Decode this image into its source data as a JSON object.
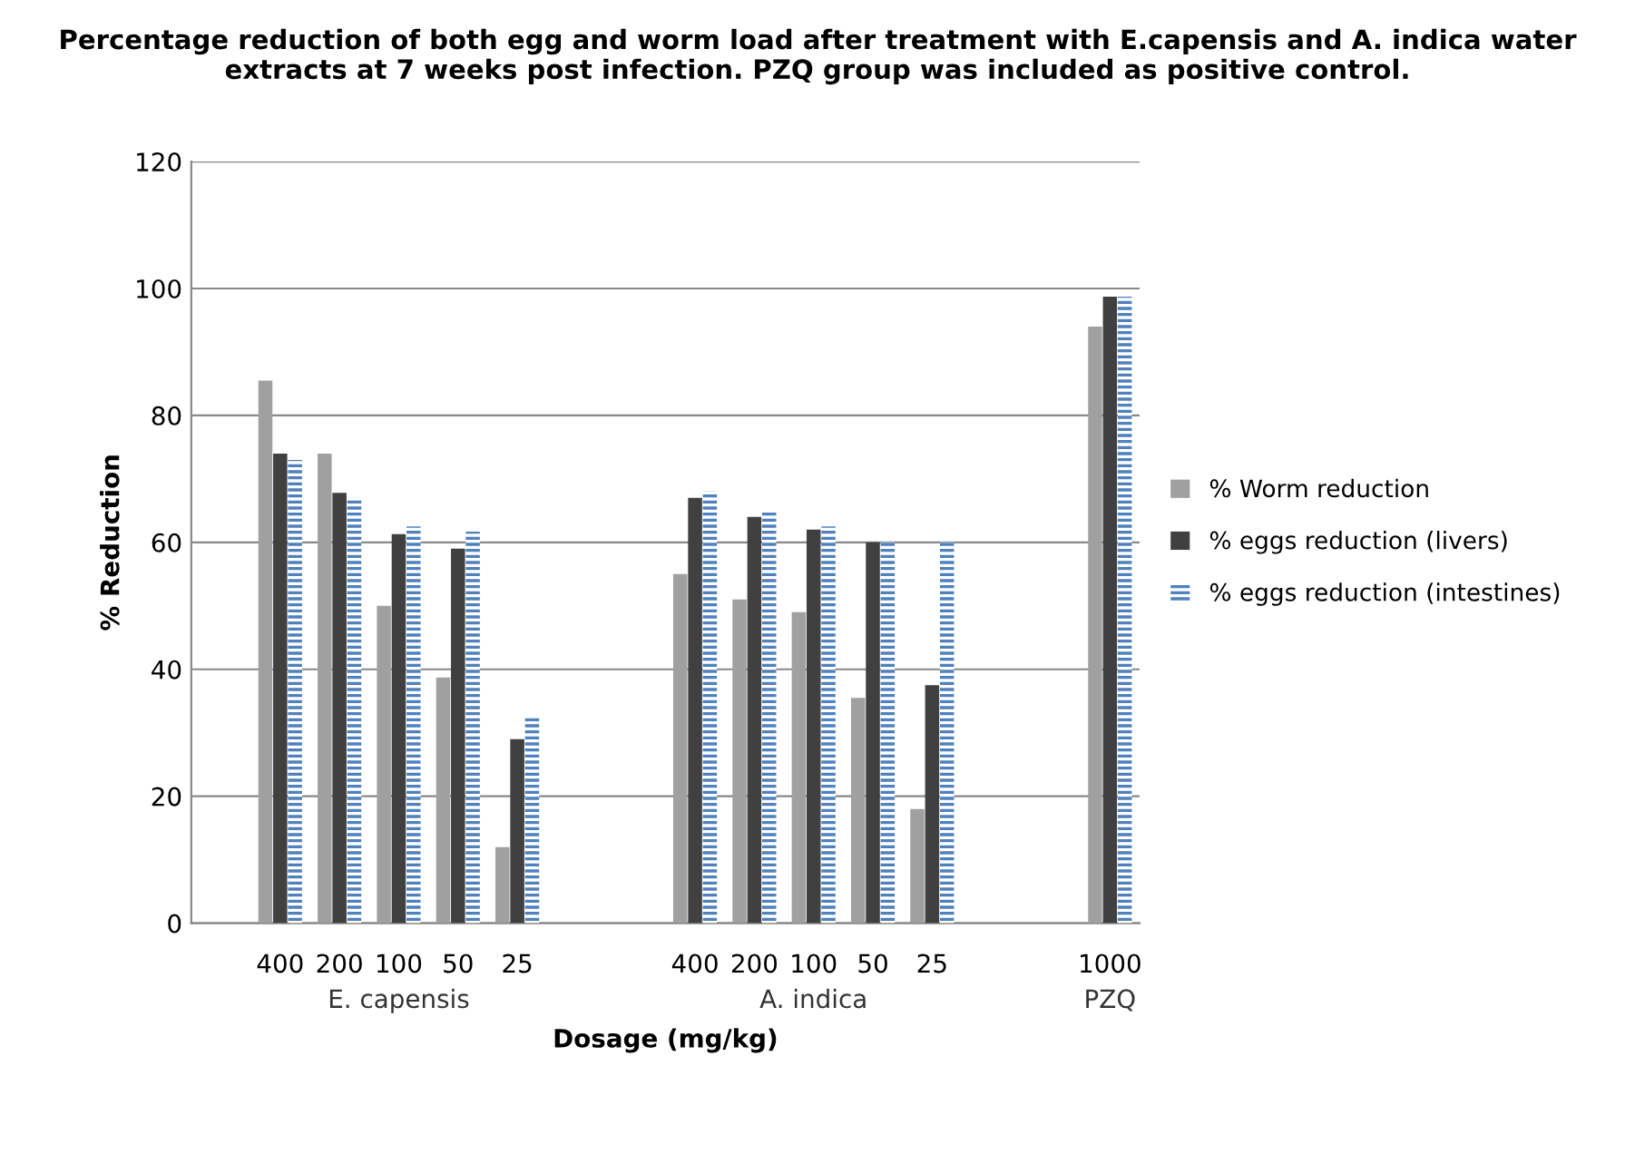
{
  "chart_data": {
    "type": "bar",
    "title": "Percentage reduction of both egg and worm load after treatment with E.capensis and A. indica water extracts at 7 weeks post infection. PZQ group was included as positive control.",
    "xlabel": "Dosage (mg/kg)",
    "ylabel": "% Reduction",
    "categories": [
      null,
      "400",
      "200",
      "100",
      "50",
      "25",
      null,
      null,
      "400",
      "200",
      "100",
      "50",
      "25",
      null,
      null,
      "1000"
    ],
    "series": [
      {
        "name": "% Worm reduction",
        "color": "#a0a0a0",
        "values": [
          null,
          85.5,
          74,
          50,
          38.7,
          12,
          null,
          null,
          55,
          51,
          49,
          35.5,
          18,
          null,
          null,
          94
        ]
      },
      {
        "name": "% eggs reduction (livers)",
        "color": "#404040",
        "values": [
          null,
          74,
          67.8,
          61.3,
          59,
          29,
          null,
          null,
          67,
          64,
          62,
          60,
          37.5,
          null,
          null,
          98.7
        ]
      },
      {
        "name": "% eggs reduction (intestines)",
        "color": "#4f81bd",
        "values": [
          null,
          73,
          67,
          62.5,
          61.7,
          32.5,
          null,
          null,
          68,
          64.7,
          62.5,
          60,
          60,
          null,
          null,
          98.7
        ]
      }
    ],
    "annotations": [
      "E. capensis",
      "A. indica",
      "PZQ"
    ],
    "ylim": [
      0,
      120
    ],
    "yticks": [
      0,
      20,
      40,
      60,
      80,
      100,
      120
    ],
    "grid": "y",
    "legend": "right"
  }
}
